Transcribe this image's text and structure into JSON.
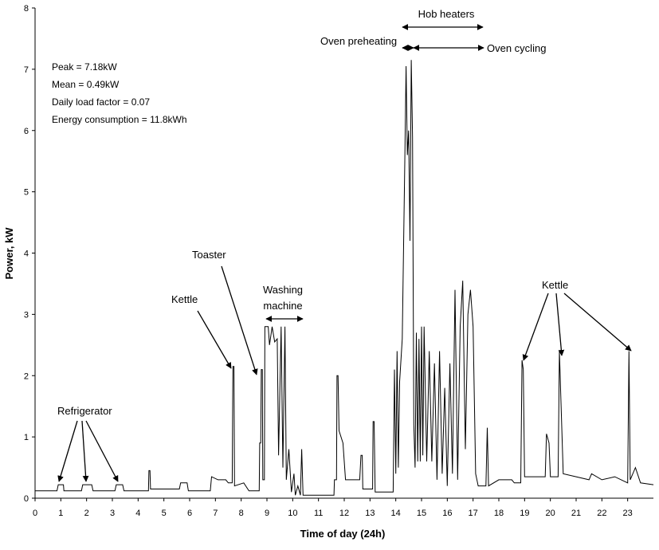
{
  "chart_data": {
    "type": "line",
    "xlabel": "Time of day (24h)",
    "ylabel": "Power, kW",
    "xlim": [
      0,
      24
    ],
    "ylim": [
      0,
      8
    ],
    "x_ticks": [
      "0",
      "1",
      "2",
      "3",
      "4",
      "5",
      "6",
      "7",
      "8",
      "9",
      "10",
      "11",
      "12",
      "13",
      "14",
      "15",
      "16",
      "17",
      "18",
      "19",
      "20",
      "21",
      "22",
      "23"
    ],
    "y_ticks": [
      "0",
      "1",
      "2",
      "3",
      "4",
      "5",
      "6",
      "7",
      "8"
    ],
    "grid": false,
    "stats": [
      "Peak = 7.18kW",
      "Mean = 0.49kW",
      "Daily load factor = 0.07",
      "Energy consumption = 11.8kWh"
    ],
    "annotations": {
      "refrigerator": "Refrigerator",
      "kettle_morning": "Kettle",
      "toaster": "Toaster",
      "washing_machine_1": "Washing",
      "washing_machine_2": "machine",
      "hob_heaters": "Hob heaters",
      "oven_preheating": "Oven preheating",
      "oven_cycling": "Oven cycling",
      "kettle_evening": "Kettle"
    },
    "series": [
      {
        "points": [
          [
            0.0,
            0.12
          ],
          [
            0.85,
            0.12
          ],
          [
            0.9,
            0.22
          ],
          [
            1.1,
            0.22
          ],
          [
            1.12,
            0.12
          ],
          [
            1.8,
            0.12
          ],
          [
            1.85,
            0.22
          ],
          [
            2.2,
            0.22
          ],
          [
            2.25,
            0.12
          ],
          [
            3.1,
            0.12
          ],
          [
            3.15,
            0.22
          ],
          [
            3.4,
            0.22
          ],
          [
            3.45,
            0.12
          ],
          [
            4.4,
            0.12
          ],
          [
            4.42,
            0.45
          ],
          [
            4.46,
            0.45
          ],
          [
            4.48,
            0.15
          ],
          [
            4.9,
            0.15
          ],
          [
            5.6,
            0.15
          ],
          [
            5.65,
            0.25
          ],
          [
            5.9,
            0.25
          ],
          [
            5.95,
            0.12
          ],
          [
            6.8,
            0.12
          ],
          [
            6.85,
            0.35
          ],
          [
            7.1,
            0.3
          ],
          [
            7.4,
            0.3
          ],
          [
            7.5,
            0.25
          ],
          [
            7.65,
            0.25
          ],
          [
            7.68,
            2.15
          ],
          [
            7.72,
            2.15
          ],
          [
            7.74,
            0.2
          ],
          [
            8.1,
            0.25
          ],
          [
            8.3,
            0.12
          ],
          [
            8.7,
            0.12
          ],
          [
            8.72,
            0.9
          ],
          [
            8.76,
            0.9
          ],
          [
            8.78,
            2.1
          ],
          [
            8.82,
            2.1
          ],
          [
            8.84,
            0.3
          ],
          [
            8.9,
            0.3
          ],
          [
            8.92,
            2.8
          ],
          [
            9.05,
            2.8
          ],
          [
            9.1,
            2.5
          ],
          [
            9.2,
            2.8
          ],
          [
            9.3,
            2.55
          ],
          [
            9.4,
            2.6
          ],
          [
            9.45,
            0.7
          ],
          [
            9.55,
            2.8
          ],
          [
            9.62,
            0.5
          ],
          [
            9.7,
            2.8
          ],
          [
            9.75,
            0.3
          ],
          [
            9.85,
            0.8
          ],
          [
            9.95,
            0.1
          ],
          [
            10.05,
            0.4
          ],
          [
            10.1,
            0.05
          ],
          [
            10.2,
            0.2
          ],
          [
            10.3,
            0.05
          ],
          [
            10.35,
            0.8
          ],
          [
            10.4,
            0.05
          ],
          [
            11.6,
            0.05
          ],
          [
            11.62,
            0.3
          ],
          [
            11.7,
            0.3
          ],
          [
            11.72,
            2.0
          ],
          [
            11.76,
            2.0
          ],
          [
            11.8,
            1.1
          ],
          [
            11.95,
            0.9
          ],
          [
            12.05,
            0.3
          ],
          [
            12.6,
            0.3
          ],
          [
            12.65,
            0.7
          ],
          [
            12.7,
            0.7
          ],
          [
            12.72,
            0.15
          ],
          [
            13.1,
            0.15
          ],
          [
            13.12,
            1.25
          ],
          [
            13.16,
            1.25
          ],
          [
            13.2,
            0.1
          ],
          [
            13.9,
            0.1
          ],
          [
            13.95,
            2.1
          ],
          [
            14.0,
            0.4
          ],
          [
            14.05,
            2.4
          ],
          [
            14.1,
            0.5
          ],
          [
            14.15,
            1.9
          ],
          [
            14.25,
            2.6
          ],
          [
            14.35,
            5.5
          ],
          [
            14.4,
            7.05
          ],
          [
            14.45,
            5.6
          ],
          [
            14.5,
            6.0
          ],
          [
            14.55,
            4.2
          ],
          [
            14.6,
            7.15
          ],
          [
            14.65,
            5.9
          ],
          [
            14.7,
            1.2
          ],
          [
            14.75,
            0.5
          ],
          [
            14.8,
            2.7
          ],
          [
            14.85,
            0.6
          ],
          [
            14.9,
            2.6
          ],
          [
            14.95,
            0.6
          ],
          [
            15.0,
            2.8
          ],
          [
            15.05,
            0.7
          ],
          [
            15.1,
            2.8
          ],
          [
            15.2,
            0.6
          ],
          [
            15.3,
            2.4
          ],
          [
            15.4,
            0.6
          ],
          [
            15.5,
            2.2
          ],
          [
            15.6,
            0.3
          ],
          [
            15.7,
            2.4
          ],
          [
            15.8,
            0.4
          ],
          [
            15.9,
            1.8
          ],
          [
            16.0,
            0.2
          ],
          [
            16.1,
            2.2
          ],
          [
            16.2,
            0.4
          ],
          [
            16.3,
            3.4
          ],
          [
            16.4,
            0.3
          ],
          [
            16.5,
            2.8
          ],
          [
            16.6,
            3.55
          ],
          [
            16.7,
            0.8
          ],
          [
            16.8,
            3.0
          ],
          [
            16.9,
            3.4
          ],
          [
            17.0,
            2.8
          ],
          [
            17.1,
            0.4
          ],
          [
            17.2,
            0.2
          ],
          [
            17.5,
            0.2
          ],
          [
            17.55,
            1.15
          ],
          [
            17.6,
            0.2
          ],
          [
            18.0,
            0.3
          ],
          [
            18.5,
            0.3
          ],
          [
            18.6,
            0.25
          ],
          [
            18.85,
            0.25
          ],
          [
            18.9,
            2.25
          ],
          [
            18.95,
            2.1
          ],
          [
            19.0,
            0.35
          ],
          [
            19.8,
            0.35
          ],
          [
            19.85,
            1.05
          ],
          [
            19.95,
            0.9
          ],
          [
            20.0,
            0.35
          ],
          [
            20.3,
            0.35
          ],
          [
            20.35,
            2.4
          ],
          [
            20.5,
            0.4
          ],
          [
            21.0,
            0.35
          ],
          [
            21.5,
            0.3
          ],
          [
            21.6,
            0.4
          ],
          [
            22.0,
            0.3
          ],
          [
            22.5,
            0.35
          ],
          [
            23.0,
            0.25
          ],
          [
            23.05,
            2.4
          ],
          [
            23.1,
            0.3
          ],
          [
            23.3,
            0.5
          ],
          [
            23.5,
            0.25
          ],
          [
            24.0,
            0.22
          ]
        ]
      }
    ]
  }
}
